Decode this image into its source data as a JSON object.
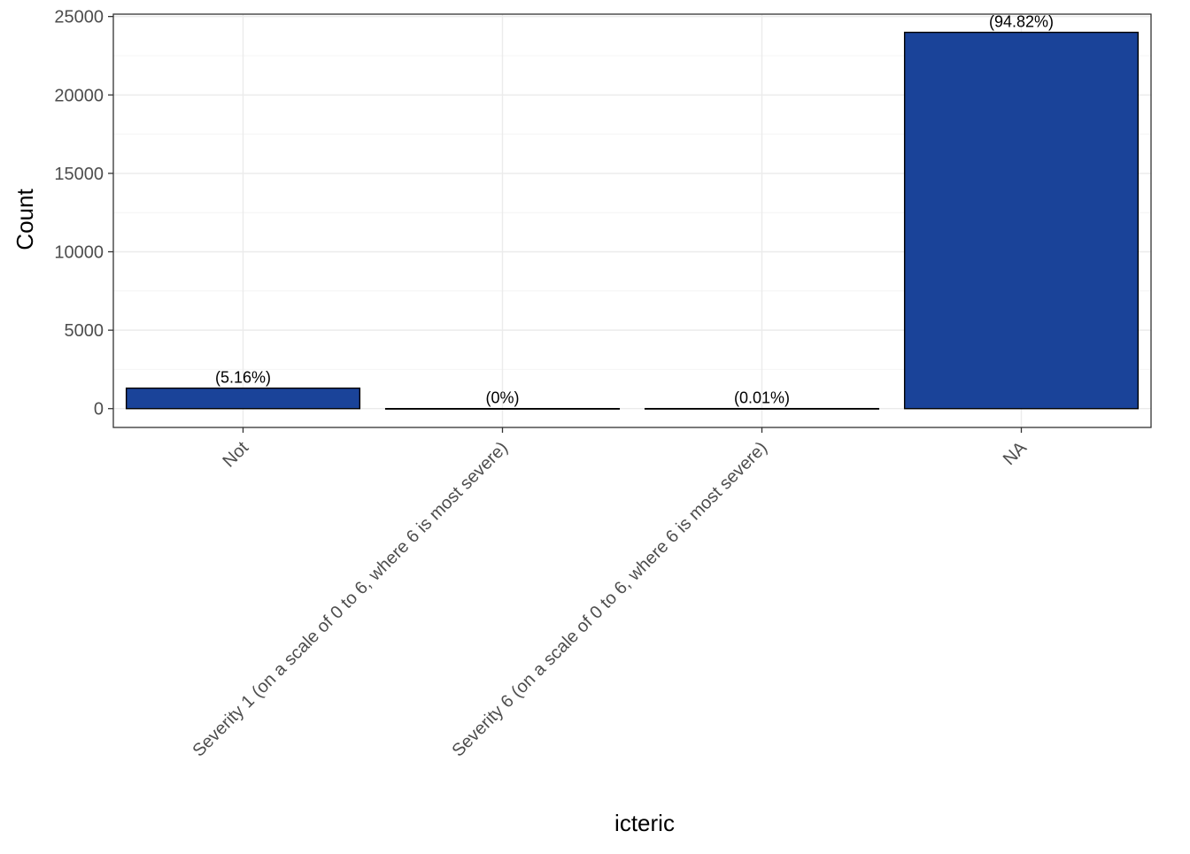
{
  "chart_data": {
    "type": "bar",
    "title": "",
    "xlabel": "icteric",
    "ylabel": "Count",
    "categories": [
      "Not",
      "Severity 1 (on a scale of 0 to 6, where 6 is most severe)",
      "Severity 6 (on a scale of 0 to 6, where 6 is most severe)",
      "NA"
    ],
    "values": [
      1305,
      1,
      3,
      23990
    ],
    "data_labels": [
      "(5.16%)",
      "(0%)",
      "(0.01%)",
      "(94.82%)"
    ],
    "y_ticks": [
      0,
      5000,
      10000,
      15000,
      20000,
      25000
    ],
    "y_tick_labels": [
      "0",
      "5000",
      "10000",
      "15000",
      "20000",
      "25000"
    ],
    "ylim": [
      -1200,
      25150
    ],
    "grid": true,
    "legend": "none",
    "colors": {
      "bar_fill": "#1A4399",
      "bar_stroke": "#000000",
      "grid_major": "#EBEBEB",
      "grid_minor": "#F4F4F4",
      "panel_border": "#333333",
      "tick_label": "#4D4D4D",
      "axis_title": "#000000",
      "data_label": "#000000"
    }
  }
}
